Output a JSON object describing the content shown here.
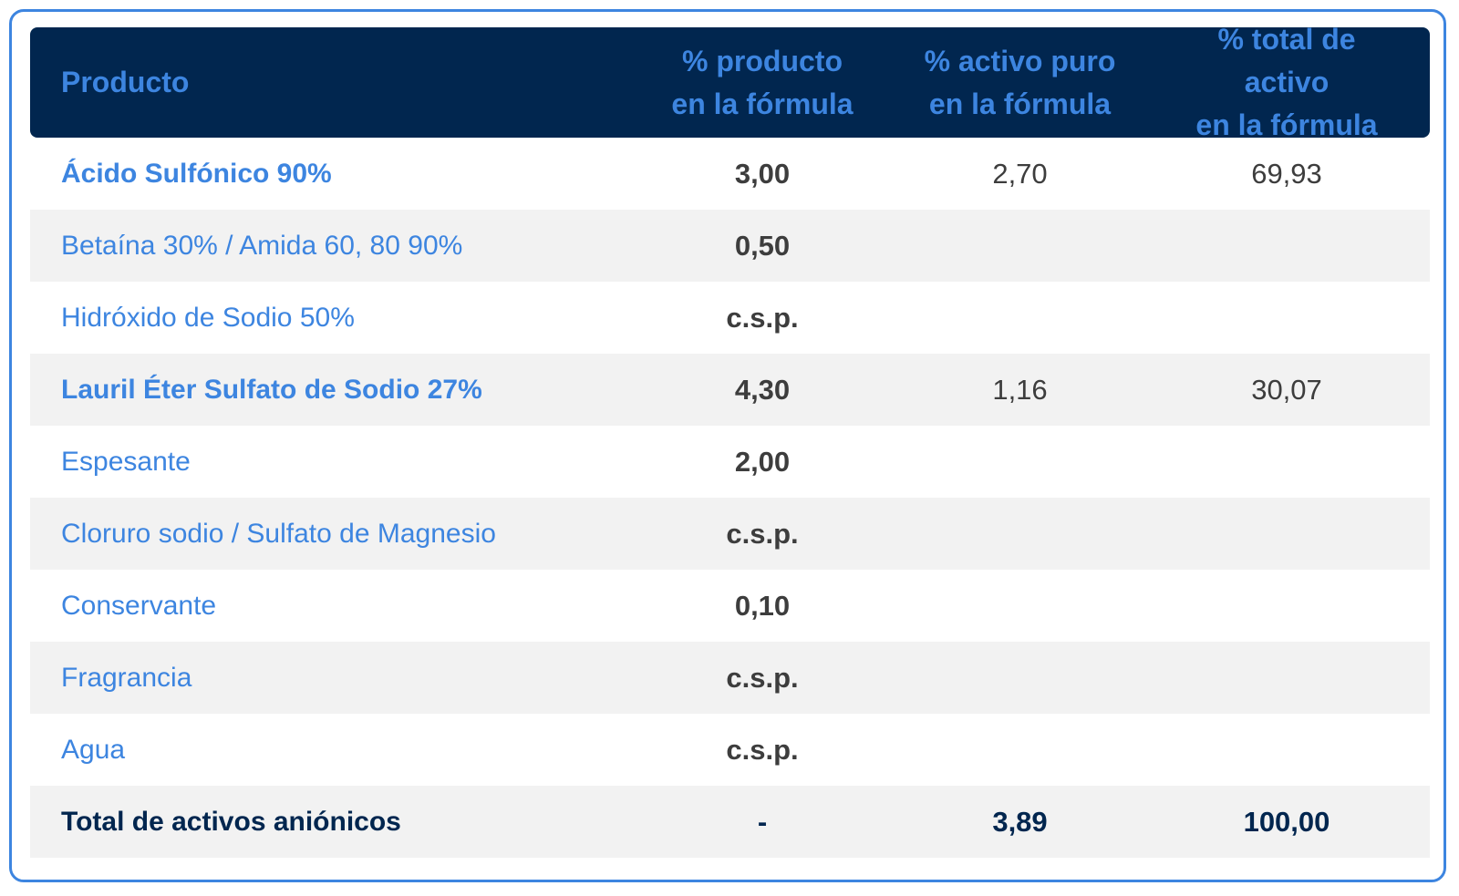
{
  "header": {
    "col1": "Producto",
    "col2_line1": "% producto",
    "col2_line2": "en la fórmula",
    "col3_line1": "% activo puro",
    "col3_line2": "en la fórmula",
    "col4_line1": "% total de activo",
    "col4_line2": "en la fórmula"
  },
  "rows": [
    {
      "product": "Ácido Sulfónico 90%",
      "pct_product": "3,00",
      "pct_active": "2,70",
      "pct_total": "69,93"
    },
    {
      "product": "Betaína 30% / Amida 60, 80 90%",
      "pct_product": "0,50",
      "pct_active": "",
      "pct_total": ""
    },
    {
      "product": "Hidróxido de Sodio 50%",
      "pct_product": "c.s.p.",
      "pct_active": "",
      "pct_total": ""
    },
    {
      "product": "Lauril Éter Sulfato de Sodio 27%",
      "pct_product": "4,30",
      "pct_active": "1,16",
      "pct_total": "30,07"
    },
    {
      "product": "Espesante",
      "pct_product": "2,00",
      "pct_active": "",
      "pct_total": ""
    },
    {
      "product": "Cloruro sodio / Sulfato de Magnesio",
      "pct_product": "c.s.p.",
      "pct_active": "",
      "pct_total": ""
    },
    {
      "product": "Conservante",
      "pct_product": "0,10",
      "pct_active": "",
      "pct_total": ""
    },
    {
      "product": "Fragrancia",
      "pct_product": "c.s.p.",
      "pct_active": "",
      "pct_total": ""
    },
    {
      "product": "Agua",
      "pct_product": "c.s.p.",
      "pct_active": "",
      "pct_total": ""
    }
  ],
  "total": {
    "product": "Total de activos aniónicos",
    "pct_product": "-",
    "pct_active": "3,89",
    "pct_total": "100,00"
  },
  "colors": {
    "accent": "#3d85e0",
    "header_bg": "#01264f",
    "row_shade": "#f2f2f2"
  }
}
